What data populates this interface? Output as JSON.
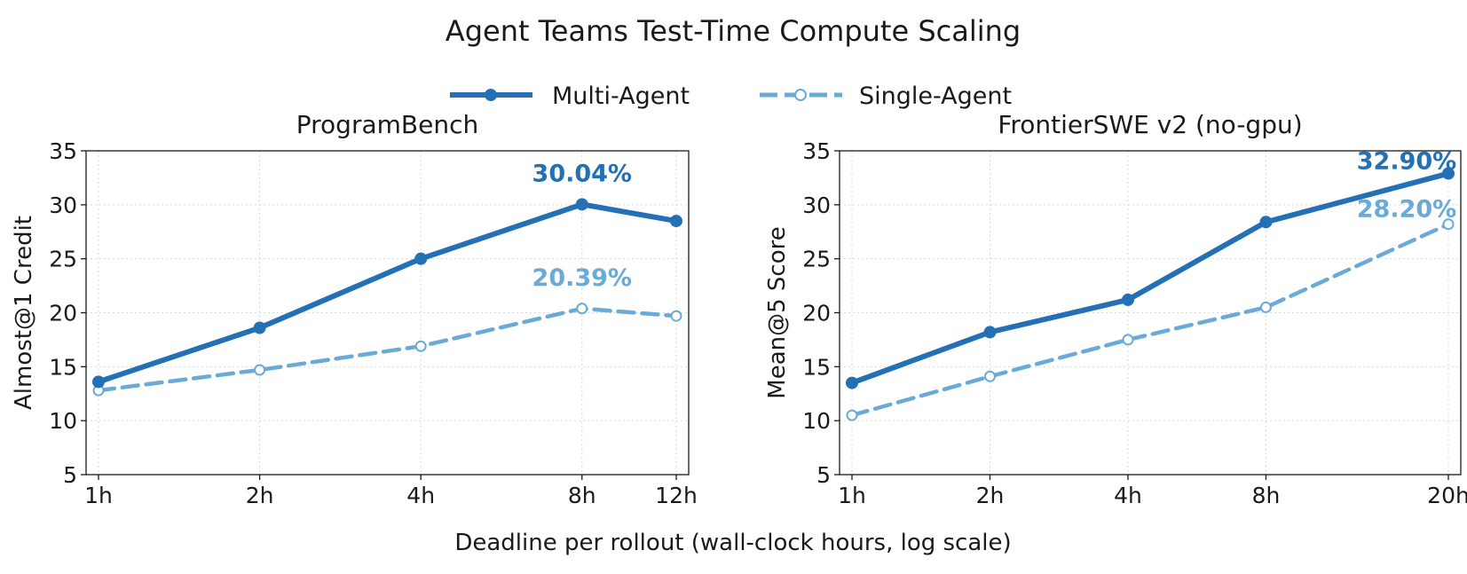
{
  "figure": {
    "title": "Agent Teams Test-Time Compute Scaling",
    "xlabel": "Deadline per rollout (wall-clock hours, log scale)"
  },
  "legend": {
    "placement": "top-center",
    "items": [
      {
        "name": "Multi-Agent",
        "color": "#2470b5",
        "style": "solid",
        "marker": "filled-circle"
      },
      {
        "name": "Single-Agent",
        "color": "#6aaad6",
        "style": "dashed",
        "marker": "hollow-circle"
      }
    ]
  },
  "chart_data": [
    {
      "type": "line",
      "title": "ProgramBench",
      "xlabel": "",
      "ylabel": "Almost@1 Credit",
      "x_scale": "log",
      "x": [
        1,
        2,
        4,
        8,
        12
      ],
      "x_tick_labels": [
        "1h",
        "2h",
        "4h",
        "8h",
        "12h"
      ],
      "ylim": [
        5,
        35
      ],
      "y_ticks": [
        5,
        10,
        15,
        20,
        25,
        30,
        35
      ],
      "grid": true,
      "series": [
        {
          "name": "Multi-Agent",
          "color": "#2470b5",
          "values": [
            13.6,
            18.6,
            25.0,
            30.04,
            28.5
          ]
        },
        {
          "name": "Single-Agent",
          "color": "#6aaad6",
          "values": [
            12.8,
            14.7,
            16.9,
            20.39,
            19.7
          ]
        }
      ],
      "annotations": [
        {
          "text": "30.04%",
          "series": "Multi-Agent",
          "x": 8,
          "y": 30.04
        },
        {
          "text": "20.39%",
          "series": "Single-Agent",
          "x": 8,
          "y": 20.39
        }
      ]
    },
    {
      "type": "line",
      "title": "FrontierSWE v2 (no-gpu)",
      "xlabel": "",
      "ylabel": "Mean@5 Score",
      "x_scale": "log",
      "x": [
        1,
        2,
        4,
        8,
        20
      ],
      "x_tick_labels": [
        "1h",
        "2h",
        "4h",
        "8h",
        "20h"
      ],
      "ylim": [
        5,
        35
      ],
      "y_ticks": [
        5,
        10,
        15,
        20,
        25,
        30,
        35
      ],
      "grid": true,
      "series": [
        {
          "name": "Multi-Agent",
          "color": "#2470b5",
          "values": [
            13.5,
            18.2,
            21.2,
            28.4,
            32.9
          ]
        },
        {
          "name": "Single-Agent",
          "color": "#6aaad6",
          "values": [
            10.5,
            14.1,
            17.5,
            20.5,
            28.2
          ]
        }
      ],
      "annotations": [
        {
          "text": "32.90%",
          "series": "Multi-Agent",
          "x": 20,
          "y": 32.9
        },
        {
          "text": "28.20%",
          "series": "Single-Agent",
          "x": 20,
          "y": 28.2
        }
      ]
    }
  ]
}
